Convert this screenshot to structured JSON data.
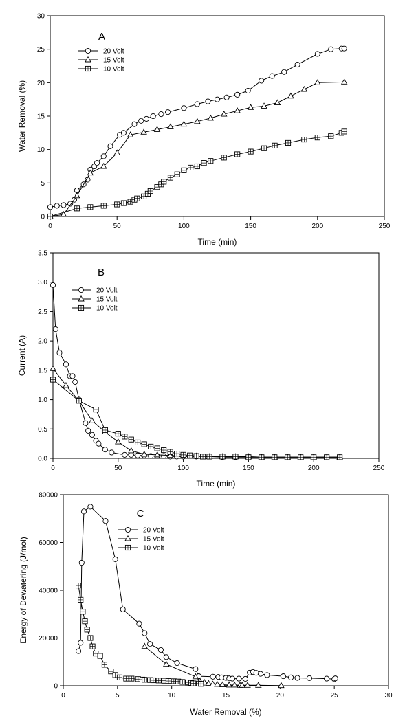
{
  "chart_data": [
    {
      "type": "line",
      "panel_label": "A",
      "xlabel": "Time (min)",
      "ylabel": "Water Removal (%)",
      "xlim": [
        0,
        250
      ],
      "ylim": [
        0,
        30
      ],
      "xticks": [
        0,
        50,
        100,
        150,
        200,
        250
      ],
      "yticks": [
        0,
        5,
        10,
        15,
        20,
        25,
        30
      ],
      "grid": false,
      "legend_position": "top-left",
      "series": [
        {
          "name": "20 Volt",
          "marker": "circle",
          "x": [
            0,
            5,
            10,
            15,
            18,
            20,
            25,
            28,
            30,
            33,
            35,
            40,
            45,
            52,
            55,
            63,
            68,
            72,
            77,
            83,
            88,
            100,
            110,
            118,
            125,
            132,
            140,
            148,
            158,
            166,
            175,
            185,
            200,
            210,
            218,
            220
          ],
          "y": [
            1.4,
            1.6,
            1.7,
            1.9,
            2.5,
            3.9,
            4.8,
            5.5,
            7.0,
            7.5,
            8.0,
            9.0,
            10.5,
            12.2,
            12.5,
            13.8,
            14.3,
            14.6,
            15.0,
            15.3,
            15.6,
            16.2,
            16.8,
            17.2,
            17.5,
            17.8,
            18.2,
            18.8,
            20.3,
            21.0,
            21.6,
            22.7,
            24.3,
            25.0,
            25.1,
            25.1
          ]
        },
        {
          "name": "15 Volt",
          "marker": "triangle",
          "x": [
            0,
            10,
            20,
            30,
            40,
            50,
            60,
            70,
            80,
            90,
            100,
            110,
            120,
            130,
            140,
            150,
            160,
            170,
            180,
            190,
            200,
            220
          ],
          "y": [
            0,
            0.3,
            3.1,
            6.5,
            7.5,
            9.5,
            12.2,
            12.6,
            13.0,
            13.4,
            13.8,
            14.2,
            14.7,
            15.3,
            15.8,
            16.3,
            16.5,
            17.0,
            18.0,
            19.0,
            20.0,
            20.1
          ]
        },
        {
          "name": "10 Volt",
          "marker": "square-plus",
          "x": [
            0,
            20,
            30,
            40,
            50,
            55,
            60,
            63,
            65,
            70,
            73,
            75,
            80,
            83,
            85,
            90,
            95,
            100,
            105,
            110,
            115,
            120,
            130,
            140,
            150,
            160,
            168,
            178,
            190,
            200,
            210,
            218,
            220
          ],
          "y": [
            0,
            1.2,
            1.4,
            1.6,
            1.8,
            2.0,
            2.2,
            2.5,
            2.7,
            3.0,
            3.4,
            3.8,
            4.4,
            4.8,
            5.2,
            5.8,
            6.3,
            6.9,
            7.3,
            7.5,
            8.0,
            8.3,
            8.8,
            9.3,
            9.7,
            10.2,
            10.6,
            11.0,
            11.5,
            11.8,
            12.0,
            12.5,
            12.7
          ]
        }
      ]
    },
    {
      "type": "line",
      "panel_label": "B",
      "xlabel": "Time (min)",
      "ylabel": "Current (A)",
      "xlim": [
        0,
        250
      ],
      "ylim": [
        0,
        3.5
      ],
      "xticks": [
        0,
        50,
        100,
        150,
        200,
        250
      ],
      "yticks": [
        0.0,
        0.5,
        1.0,
        1.5,
        2.0,
        2.5,
        3.0,
        3.5
      ],
      "grid": false,
      "legend_position": "top-left",
      "series": [
        {
          "name": "20 Volt",
          "marker": "circle",
          "x": [
            0,
            2,
            5,
            10,
            13,
            15,
            17,
            20,
            25,
            27,
            30,
            33,
            35,
            40,
            45,
            55,
            60,
            65,
            70,
            75,
            80,
            85,
            90,
            95,
            100,
            110,
            120,
            130,
            140,
            150,
            160,
            170,
            180,
            190,
            200,
            210,
            220
          ],
          "y": [
            2.95,
            2.2,
            1.8,
            1.6,
            1.4,
            1.4,
            1.3,
            1.0,
            0.6,
            0.47,
            0.4,
            0.3,
            0.25,
            0.15,
            0.1,
            0.06,
            0.06,
            0.05,
            0.05,
            0.04,
            0.04,
            0.04,
            0.03,
            0.03,
            0.03,
            0.03,
            0.03,
            0.02,
            0.02,
            0.02,
            0.02,
            0.02,
            0.02,
            0.02,
            0.02,
            0.02,
            0.02
          ]
        },
        {
          "name": "15 Volt",
          "marker": "triangle",
          "x": [
            0,
            10,
            20,
            30,
            40,
            50,
            60,
            70,
            80,
            90,
            100,
            110,
            120,
            130,
            140,
            150,
            160,
            170,
            180,
            190,
            200,
            220
          ],
          "y": [
            1.53,
            1.24,
            0.98,
            0.64,
            0.45,
            0.28,
            0.13,
            0.07,
            0.06,
            0.05,
            0.04,
            0.04,
            0.03,
            0.03,
            0.03,
            0.03,
            0.02,
            0.02,
            0.02,
            0.02,
            0.02,
            0.02
          ]
        },
        {
          "name": "10 Volt",
          "marker": "square-plus",
          "x": [
            0,
            20,
            33,
            40,
            50,
            55,
            60,
            65,
            70,
            75,
            80,
            85,
            90,
            95,
            100,
            105,
            110,
            115,
            120,
            130,
            140,
            150,
            160,
            170,
            180,
            190,
            200,
            210,
            220
          ],
          "y": [
            1.34,
            0.98,
            0.83,
            0.48,
            0.42,
            0.37,
            0.32,
            0.27,
            0.24,
            0.2,
            0.17,
            0.14,
            0.11,
            0.08,
            0.06,
            0.05,
            0.04,
            0.03,
            0.03,
            0.03,
            0.03,
            0.02,
            0.02,
            0.02,
            0.02,
            0.02,
            0.02,
            0.02,
            0.02
          ]
        }
      ]
    },
    {
      "type": "line",
      "panel_label": "C",
      "xlabel": "Water Removal (%)",
      "ylabel": "Energy of Dewatering (J/mol)",
      "xlim": [
        0,
        30
      ],
      "ylim": [
        0,
        80000
      ],
      "xticks": [
        0,
        5,
        10,
        15,
        20,
        25,
        30
      ],
      "yticks": [
        0,
        20000,
        40000,
        60000,
        80000
      ],
      "grid": false,
      "legend_position": "top-center",
      "series": [
        {
          "name": "20 Volt",
          "marker": "circle",
          "x": [
            1.4,
            1.6,
            1.7,
            1.9,
            2.5,
            3.9,
            4.8,
            5.5,
            7.0,
            7.5,
            8.0,
            9.0,
            9.5,
            10.5,
            12.2,
            12.5,
            13.8,
            14.3,
            14.6,
            15.0,
            15.3,
            15.6,
            16.2,
            16.8,
            17.2,
            17.5,
            17.8,
            18.2,
            18.8,
            20.3,
            21.0,
            21.6,
            22.7,
            24.3,
            25.0,
            25.1
          ],
          "y": [
            14500,
            18000,
            51500,
            73000,
            75000,
            69000,
            53000,
            32000,
            26000,
            22000,
            17500,
            15000,
            12000,
            9500,
            7000,
            4000,
            3800,
            3700,
            3500,
            3300,
            3100,
            3000,
            3000,
            2900,
            5500,
            5800,
            5400,
            5000,
            4500,
            4000,
            3500,
            3300,
            3200,
            3000,
            2800,
            3100
          ]
        },
        {
          "name": "15 Volt",
          "marker": "triangle",
          "x": [
            7.5,
            9.5,
            12.2,
            12.6,
            13.0,
            13.4,
            13.8,
            14.2,
            14.7,
            15.3,
            15.8,
            16.3,
            16.5,
            17.0,
            18.0,
            20.1
          ],
          "y": [
            16500,
            9000,
            3800,
            2000,
            1500,
            1000,
            700,
            600,
            400,
            300,
            300,
            200,
            200,
            200,
            200,
            100
          ]
        },
        {
          "name": "10 Volt",
          "marker": "square-plus",
          "x": [
            1.4,
            1.6,
            1.8,
            2.0,
            2.2,
            2.5,
            2.7,
            3.0,
            3.4,
            3.8,
            4.4,
            4.8,
            5.2,
            5.8,
            6.3,
            6.9,
            7.3,
            7.5,
            8.0,
            8.3,
            8.8,
            9.3,
            9.7,
            10.2,
            10.6,
            11.0,
            11.5,
            11.8,
            12.0,
            12.5,
            12.7
          ],
          "y": [
            42000,
            36000,
            31000,
            27000,
            23500,
            20000,
            16500,
            13500,
            12500,
            8800,
            6000,
            4500,
            3500,
            3000,
            3000,
            2800,
            2600,
            2500,
            2400,
            2300,
            2200,
            2100,
            2000,
            1900,
            1800,
            1600,
            1400,
            1200,
            1000,
            900,
            800
          ]
        }
      ]
    }
  ]
}
